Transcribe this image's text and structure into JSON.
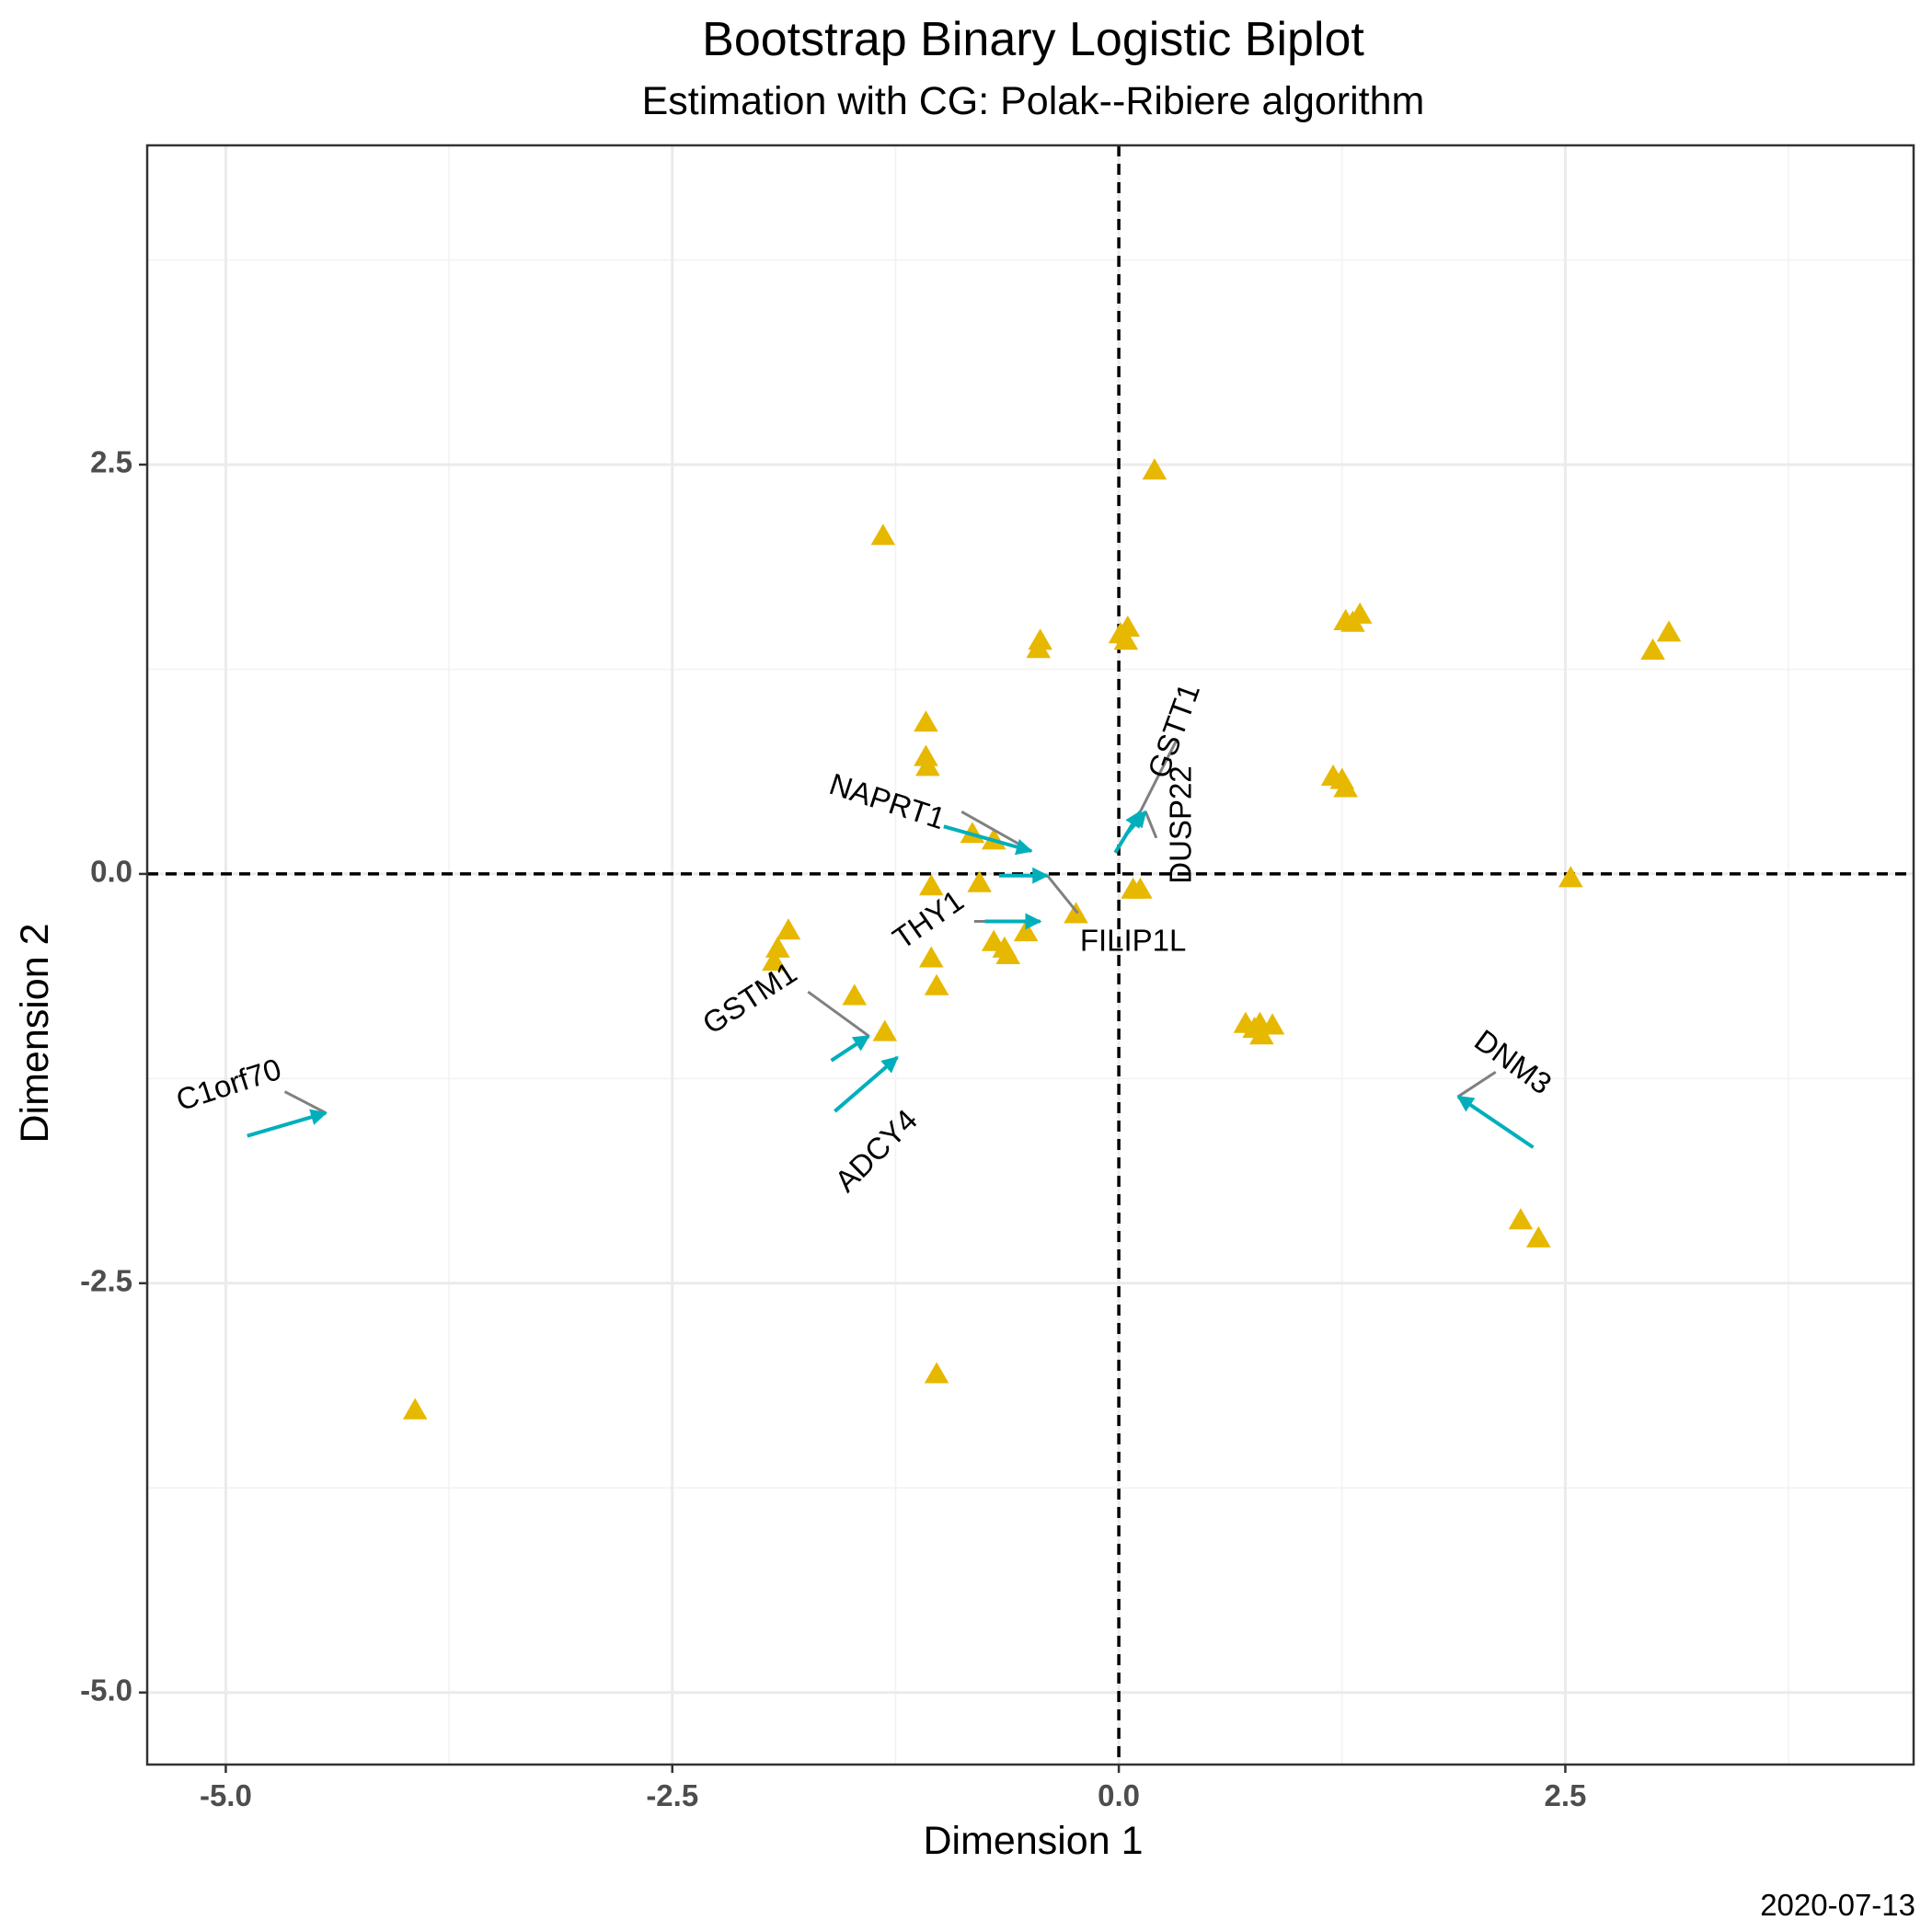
{
  "chart_data": {
    "type": "scatter",
    "title": "Bootstrap Binary Logistic Biplot",
    "subtitle": "Estimation with CG: Polak--Ribiere algorithm",
    "xlabel": "Dimension 1",
    "ylabel": "Dimension 2",
    "caption": "2020-07-13",
    "xlim": [
      -5.44,
      4.45
    ],
    "ylim": [
      -5.44,
      4.45
    ],
    "x_ticks": [
      -5.0,
      -2.5,
      0.0,
      2.5
    ],
    "y_ticks": [
      -5.0,
      -2.5,
      0.0,
      2.5
    ],
    "x_tick_labels": [
      "-5.0",
      "-2.5",
      "0.0",
      "2.5"
    ],
    "y_tick_labels": [
      "-5.0",
      "-2.5",
      "0.0",
      "2.5"
    ],
    "grid": true,
    "reference_lines": {
      "x": 0,
      "y": 0,
      "style": "dashed"
    },
    "colors": {
      "points": "#E7B800",
      "arrows": "#00AFBB",
      "label_segments": "#808080",
      "grid_major": "#EBEBEB",
      "grid_minor": "#F2F2F2"
    },
    "points": [
      {
        "x": 0.2,
        "y": 2.46
      },
      {
        "x": -1.32,
        "y": 2.06
      },
      {
        "x": 1.35,
        "y": 1.58
      },
      {
        "x": 1.27,
        "y": 1.54
      },
      {
        "x": 1.31,
        "y": 1.53
      },
      {
        "x": 3.08,
        "y": 1.47
      },
      {
        "x": 2.99,
        "y": 1.36
      },
      {
        "x": -0.44,
        "y": 1.42
      },
      {
        "x": -0.45,
        "y": 1.37
      },
      {
        "x": 0.05,
        "y": 1.5
      },
      {
        "x": 0.01,
        "y": 1.46
      },
      {
        "x": 0.04,
        "y": 1.42
      },
      {
        "x": -1.08,
        "y": 0.92
      },
      {
        "x": -1.08,
        "y": 0.71
      },
      {
        "x": -1.07,
        "y": 0.65
      },
      {
        "x": 1.2,
        "y": 0.59
      },
      {
        "x": 1.25,
        "y": 0.57
      },
      {
        "x": 1.27,
        "y": 0.52
      },
      {
        "x": -0.82,
        "y": 0.24
      },
      {
        "x": -0.7,
        "y": 0.2
      },
      {
        "x": -1.05,
        "y": -0.08
      },
      {
        "x": -0.78,
        "y": -0.06
      },
      {
        "x": 0.08,
        "y": -0.1
      },
      {
        "x": 0.12,
        "y": -0.1
      },
      {
        "x": 2.53,
        "y": -0.03
      },
      {
        "x": -0.24,
        "y": -0.25
      },
      {
        "x": -0.52,
        "y": -0.36
      },
      {
        "x": -1.85,
        "y": -0.35
      },
      {
        "x": -1.91,
        "y": -0.46
      },
      {
        "x": -1.93,
        "y": -0.54
      },
      {
        "x": -0.7,
        "y": -0.42
      },
      {
        "x": -0.64,
        "y": -0.46
      },
      {
        "x": -0.62,
        "y": -0.5
      },
      {
        "x": -1.05,
        "y": -0.52
      },
      {
        "x": -1.02,
        "y": -0.69
      },
      {
        "x": -1.48,
        "y": -0.75
      },
      {
        "x": -1.31,
        "y": -0.97
      },
      {
        "x": 0.71,
        "y": -0.92
      },
      {
        "x": 0.76,
        "y": -0.95
      },
      {
        "x": 0.8,
        "y": -0.99
      },
      {
        "x": 0.86,
        "y": -0.93
      },
      {
        "x": 0.79,
        "y": -0.92
      },
      {
        "x": 2.25,
        "y": -2.12
      },
      {
        "x": 2.35,
        "y": -2.23
      },
      {
        "x": -1.02,
        "y": -3.06
      },
      {
        "x": -3.94,
        "y": -3.28
      }
    ],
    "vectors": [
      {
        "name": "C1orf70",
        "x0": -4.88,
        "y0": -1.6,
        "x1": -4.44,
        "y1": -1.46,
        "lx": -4.98,
        "ly": -1.3,
        "lrot": -18,
        "sx": -4.67,
        "sy": -1.33
      },
      {
        "name": "ADCY4",
        "x0": -1.59,
        "y0": -1.45,
        "x1": -1.24,
        "y1": -1.12,
        "lx": -1.35,
        "ly": -1.7,
        "lrot": -45,
        "sx": null,
        "sy": null
      },
      {
        "name": "GSTM1",
        "x0": -1.61,
        "y0": -1.14,
        "x1": -1.4,
        "y1": -0.99,
        "lx": -2.06,
        "ly": -0.77,
        "lrot": -33,
        "sx": -1.74,
        "sy": -0.72
      },
      {
        "name": "THY1",
        "x0": -0.75,
        "y0": -0.29,
        "x1": -0.44,
        "y1": -0.29,
        "lx": -1.06,
        "ly": -0.29,
        "lrot": -35,
        "sx": -0.81,
        "sy": -0.29
      },
      {
        "name": "FILIP1L",
        "x0": -0.67,
        "y0": -0.01,
        "x1": -0.4,
        "y1": -0.01,
        "lx": 0.08,
        "ly": -0.42,
        "lrot": 0,
        "sx": -0.23,
        "sy": -0.24
      },
      {
        "name": "NAPRT1",
        "x0": -0.98,
        "y0": 0.29,
        "x1": -0.49,
        "y1": 0.14,
        "lx": -1.3,
        "ly": 0.43,
        "lrot": 18,
        "sx": -0.88,
        "sy": 0.38
      },
      {
        "name": "GSTT1",
        "x0": -0.02,
        "y0": 0.13,
        "x1": 0.12,
        "y1": 0.38,
        "lx": 0.32,
        "ly": 0.87,
        "lrot": -70,
        "sx": 0.32,
        "sy": 0.81
      },
      {
        "name": "DUSP22",
        "x0": 0.04,
        "y0": 0.24,
        "x1": 0.15,
        "y1": 0.38,
        "lx": 0.36,
        "ly": 0.3,
        "lrot": -90,
        "sx": 0.21,
        "sy": 0.22
      },
      {
        "name": "DNM3",
        "x0": 2.32,
        "y0": -1.67,
        "x1": 1.9,
        "y1": -1.36,
        "lx": 2.2,
        "ly": -1.16,
        "lrot": 36,
        "sx": 2.11,
        "sy": -1.21
      }
    ]
  }
}
